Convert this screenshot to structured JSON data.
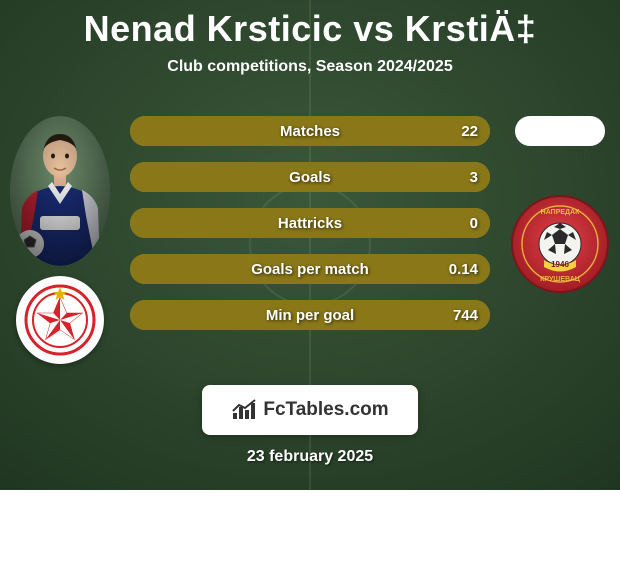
{
  "title": "Nenad Krsticic vs KrstiÄ‡",
  "subtitle": "Club competitions, Season 2024/2025",
  "date": "23 february 2025",
  "footer_brand": "FcTables.com",
  "background": {
    "gradient_top": "#5f875f",
    "gradient_bottom": "#3a5e3a",
    "dark_overlay": "rgba(25,40,25,0.55)"
  },
  "bars": {
    "track_color": "#a89428",
    "fill_color": "#8a7818",
    "rows": [
      {
        "label": "Matches",
        "left": "",
        "right": "22",
        "left_pct": 0,
        "right_pct": 100
      },
      {
        "label": "Goals",
        "left": "",
        "right": "3",
        "left_pct": 0,
        "right_pct": 100
      },
      {
        "label": "Hattricks",
        "left": "",
        "right": "0",
        "left_pct": 0,
        "right_pct": 100
      },
      {
        "label": "Goals per match",
        "left": "",
        "right": "0.14",
        "left_pct": 0,
        "right_pct": 100
      },
      {
        "label": "Min per goal",
        "left": "",
        "right": "744",
        "left_pct": 0,
        "right_pct": 100
      }
    ]
  },
  "left_player": {
    "name": "Nenad Krsticic",
    "club": "Red Star",
    "club_colors": {
      "primary": "#d8222a",
      "secondary": "#ffffff",
      "accent": "#e6b400"
    },
    "kit_colors": {
      "shirt": "#1a2e7a",
      "trim": "#ffffff",
      "sponsor": "#d8222a"
    }
  },
  "right_player": {
    "name": "KrstiÄ‡",
    "club": "Napredak",
    "club_colors": {
      "primary": "#c1272d",
      "secondary": "#f5d040",
      "accent": "#ffffff"
    },
    "pill_bg": "#ffffff"
  },
  "logo_icon_color": "#333333"
}
